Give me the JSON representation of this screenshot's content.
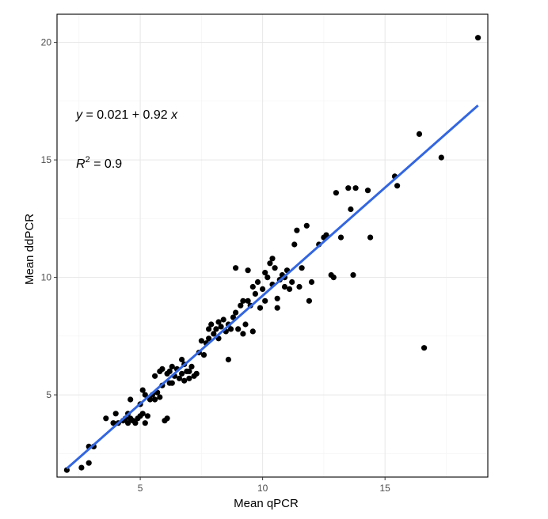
{
  "chart_data": {
    "type": "scatter",
    "xlabel": "Mean qPCR",
    "ylabel": "Mean ddPCR",
    "xlim": [
      1.6,
      19.2
    ],
    "ylim": [
      1.5,
      21.2
    ],
    "x_ticks": [
      5,
      10,
      15
    ],
    "y_ticks": [
      5,
      10,
      15,
      20
    ],
    "x_ticks_labels": [
      "5",
      "10",
      "15"
    ],
    "y_ticks_labels": [
      "5",
      "10",
      "15",
      "20"
    ],
    "grid": true,
    "legend": "none",
    "colors": {
      "points": "#000000",
      "fit_line": "#3366e0",
      "grid": "#e6e6e6",
      "frame": "#000000"
    },
    "annotations": {
      "equation": {
        "y": "y",
        "eq": " = 0.021 + 0.92 ",
        "x": "x"
      },
      "r2": {
        "r": "R",
        "sup": "2",
        "eq": " = 0.9"
      }
    },
    "fit": {
      "intercept": 0.021,
      "slope": 0.92,
      "x_start": 2.0,
      "x_end": 18.8
    },
    "points": [
      [
        2.0,
        1.8
      ],
      [
        2.6,
        1.9
      ],
      [
        2.9,
        2.1
      ],
      [
        2.9,
        2.8
      ],
      [
        3.1,
        2.8
      ],
      [
        3.6,
        4.0
      ],
      [
        3.9,
        3.8
      ],
      [
        4.0,
        4.2
      ],
      [
        4.1,
        3.8
      ],
      [
        4.3,
        3.9
      ],
      [
        4.4,
        4.0
      ],
      [
        4.5,
        3.8
      ],
      [
        4.5,
        4.2
      ],
      [
        4.6,
        4.0
      ],
      [
        4.6,
        4.8
      ],
      [
        4.7,
        3.9
      ],
      [
        4.8,
        3.8
      ],
      [
        4.9,
        4.0
      ],
      [
        5.0,
        4.1
      ],
      [
        5.1,
        4.2
      ],
      [
        5.0,
        4.6
      ],
      [
        5.1,
        5.2
      ],
      [
        5.2,
        3.8
      ],
      [
        5.3,
        4.1
      ],
      [
        5.4,
        4.8
      ],
      [
        5.5,
        5.0
      ],
      [
        5.6,
        4.8
      ],
      [
        5.6,
        5.8
      ],
      [
        5.7,
        5.1
      ],
      [
        5.8,
        4.9
      ],
      [
        5.9,
        5.4
      ],
      [
        5.9,
        6.1
      ],
      [
        6.0,
        3.9
      ],
      [
        6.1,
        4.0
      ],
      [
        6.1,
        5.9
      ],
      [
        6.2,
        6.0
      ],
      [
        6.3,
        6.2
      ],
      [
        6.3,
        5.5
      ],
      [
        6.4,
        5.8
      ],
      [
        6.5,
        6.1
      ],
      [
        6.6,
        5.7
      ],
      [
        6.7,
        5.9
      ],
      [
        6.7,
        6.5
      ],
      [
        6.8,
        5.6
      ],
      [
        6.9,
        6.0
      ],
      [
        7.0,
        5.7
      ],
      [
        7.1,
        6.2
      ],
      [
        7.2,
        5.8
      ],
      [
        7.3,
        5.9
      ],
      [
        7.4,
        6.8
      ],
      [
        7.5,
        7.3
      ],
      [
        7.6,
        6.7
      ],
      [
        7.7,
        7.2
      ],
      [
        7.8,
        7.4
      ],
      [
        7.8,
        7.8
      ],
      [
        7.9,
        8.0
      ],
      [
        8.0,
        7.6
      ],
      [
        8.1,
        7.8
      ],
      [
        8.2,
        8.1
      ],
      [
        8.3,
        7.9
      ],
      [
        8.4,
        8.2
      ],
      [
        8.5,
        7.7
      ],
      [
        8.6,
        8.0
      ],
      [
        8.7,
        7.8
      ],
      [
        8.8,
        8.3
      ],
      [
        8.9,
        8.5
      ],
      [
        9.0,
        7.8
      ],
      [
        9.1,
        8.8
      ],
      [
        9.2,
        7.6
      ],
      [
        9.3,
        8.0
      ],
      [
        9.4,
        9.0
      ],
      [
        9.5,
        8.8
      ],
      [
        9.6,
        9.6
      ],
      [
        9.7,
        9.3
      ],
      [
        9.8,
        9.8
      ],
      [
        9.9,
        8.7
      ],
      [
        10.0,
        9.5
      ],
      [
        10.1,
        10.2
      ],
      [
        10.2,
        10.0
      ],
      [
        10.3,
        10.6
      ],
      [
        10.4,
        9.7
      ],
      [
        10.5,
        10.4
      ],
      [
        10.6,
        8.7
      ],
      [
        10.7,
        9.9
      ],
      [
        10.8,
        10.1
      ],
      [
        10.9,
        9.6
      ],
      [
        11.0,
        10.3
      ],
      [
        11.2,
        9.8
      ],
      [
        11.3,
        11.4
      ],
      [
        11.4,
        12.0
      ],
      [
        11.6,
        10.4
      ],
      [
        11.8,
        12.2
      ],
      [
        12.0,
        9.8
      ],
      [
        12.3,
        11.4
      ],
      [
        12.5,
        11.7
      ],
      [
        12.6,
        11.8
      ],
      [
        12.8,
        10.1
      ],
      [
        12.9,
        10.0
      ],
      [
        13.0,
        13.6
      ],
      [
        13.2,
        11.7
      ],
      [
        13.5,
        13.8
      ],
      [
        13.6,
        12.9
      ],
      [
        13.7,
        10.1
      ],
      [
        13.8,
        13.8
      ],
      [
        14.3,
        13.7
      ],
      [
        14.4,
        11.7
      ],
      [
        15.4,
        14.3
      ],
      [
        15.5,
        13.9
      ],
      [
        16.4,
        16.1
      ],
      [
        16.6,
        7.0
      ],
      [
        17.3,
        15.1
      ],
      [
        18.8,
        20.2
      ],
      [
        5.2,
        5.0
      ],
      [
        5.8,
        6.0
      ],
      [
        6.2,
        5.5
      ],
      [
        6.8,
        6.3
      ],
      [
        7.0,
        6.0
      ],
      [
        8.2,
        7.4
      ],
      [
        8.6,
        6.5
      ],
      [
        8.9,
        10.4
      ],
      [
        9.2,
        9.0
      ],
      [
        9.4,
        10.3
      ],
      [
        9.6,
        7.7
      ],
      [
        10.1,
        9.0
      ],
      [
        10.4,
        10.8
      ],
      [
        10.6,
        9.1
      ],
      [
        10.9,
        10.0
      ],
      [
        11.1,
        9.5
      ],
      [
        11.5,
        9.6
      ],
      [
        11.9,
        9.0
      ]
    ]
  }
}
